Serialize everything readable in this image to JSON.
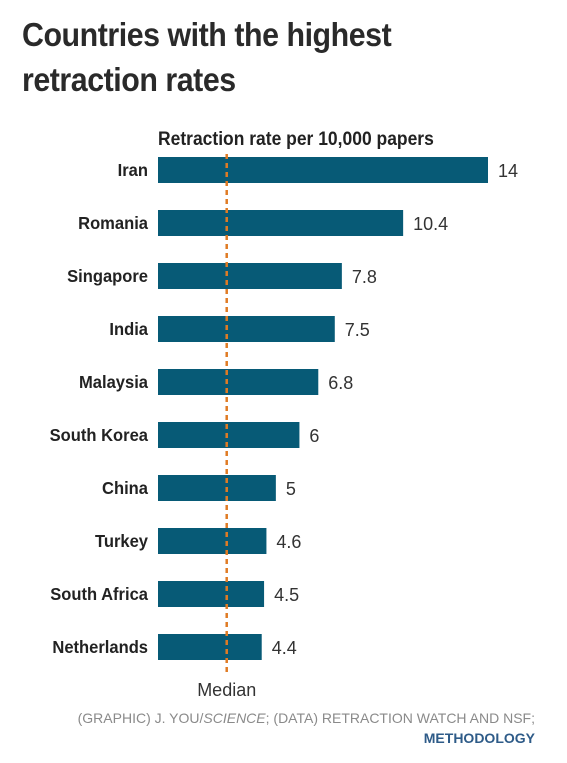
{
  "chart_data": {
    "type": "bar",
    "orientation": "horizontal",
    "title": "Countries with the highest retraction rates",
    "subtitle": "Retraction rate per 10,000 papers",
    "categories": [
      "Iran",
      "Romania",
      "Singapore",
      "India",
      "Malaysia",
      "South Korea",
      "China",
      "Turkey",
      "South Africa",
      "Netherlands"
    ],
    "values": [
      14,
      10.4,
      7.8,
      7.5,
      6.8,
      6,
      5,
      4.6,
      4.5,
      4.4
    ],
    "value_labels": [
      "14",
      "10.4",
      "7.8",
      "7.5",
      "6.8",
      "6",
      "5",
      "4.6",
      "4.5",
      "4.4"
    ],
    "reference_line": {
      "label": "Median",
      "value": 3.0,
      "style": "dashed",
      "color": "#e07b24"
    },
    "bar_color": "#075a76",
    "xlim": [
      0,
      14
    ],
    "grid": false
  },
  "footer": {
    "credit_prefix": "(GRAPHIC) J. YOU/",
    "credit_italic": "SCIENCE",
    "credit_suffix": "; (DATA) RETRACTION WATCH AND NSF;",
    "link": "METHODOLOGY",
    "link_color": "#2e5b88"
  }
}
